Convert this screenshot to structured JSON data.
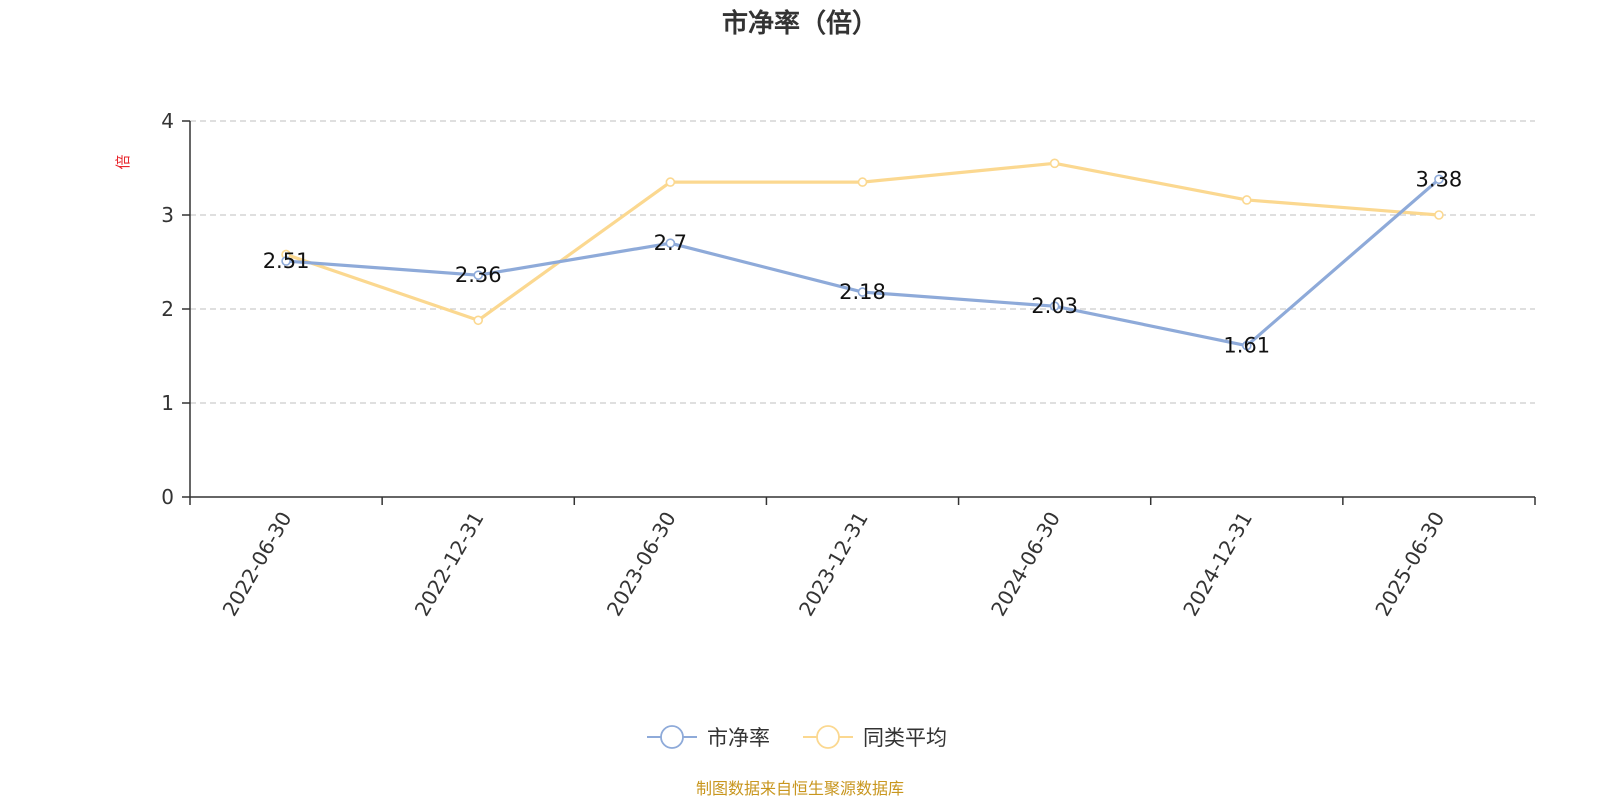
{
  "chart_data": {
    "type": "line",
    "title": "市净率（倍）",
    "ylabel": "倍",
    "xlabel": "",
    "categories": [
      "2022-06-30",
      "2022-12-31",
      "2023-06-30",
      "2023-12-31",
      "2024-06-30",
      "2024-12-31",
      "2025-06-30"
    ],
    "ylim": [
      0,
      4
    ],
    "yticks": [
      0,
      1,
      2,
      3,
      4
    ],
    "grid": "horizontal dashed",
    "legend_position": "bottom-center",
    "series": [
      {
        "name": "市净率",
        "values": [
          2.51,
          2.36,
          2.7,
          2.18,
          2.03,
          1.61,
          3.38
        ],
        "data_labels": [
          "2.51",
          "2.36",
          "2.7",
          "2.18",
          "2.03",
          "1.61",
          "3.38"
        ],
        "color": "#8eaad9"
      },
      {
        "name": "同类平均",
        "values": [
          2.58,
          1.88,
          3.35,
          3.35,
          3.55,
          3.16,
          3.0
        ],
        "color": "#fbd890"
      }
    ]
  },
  "footer": {
    "source_text": "制图数据来自恒生聚源数据库"
  },
  "colors": {
    "axis": "#333333",
    "grid": "#cccccc",
    "unit_label": "#e8262d",
    "source_text": "#c8961e"
  }
}
